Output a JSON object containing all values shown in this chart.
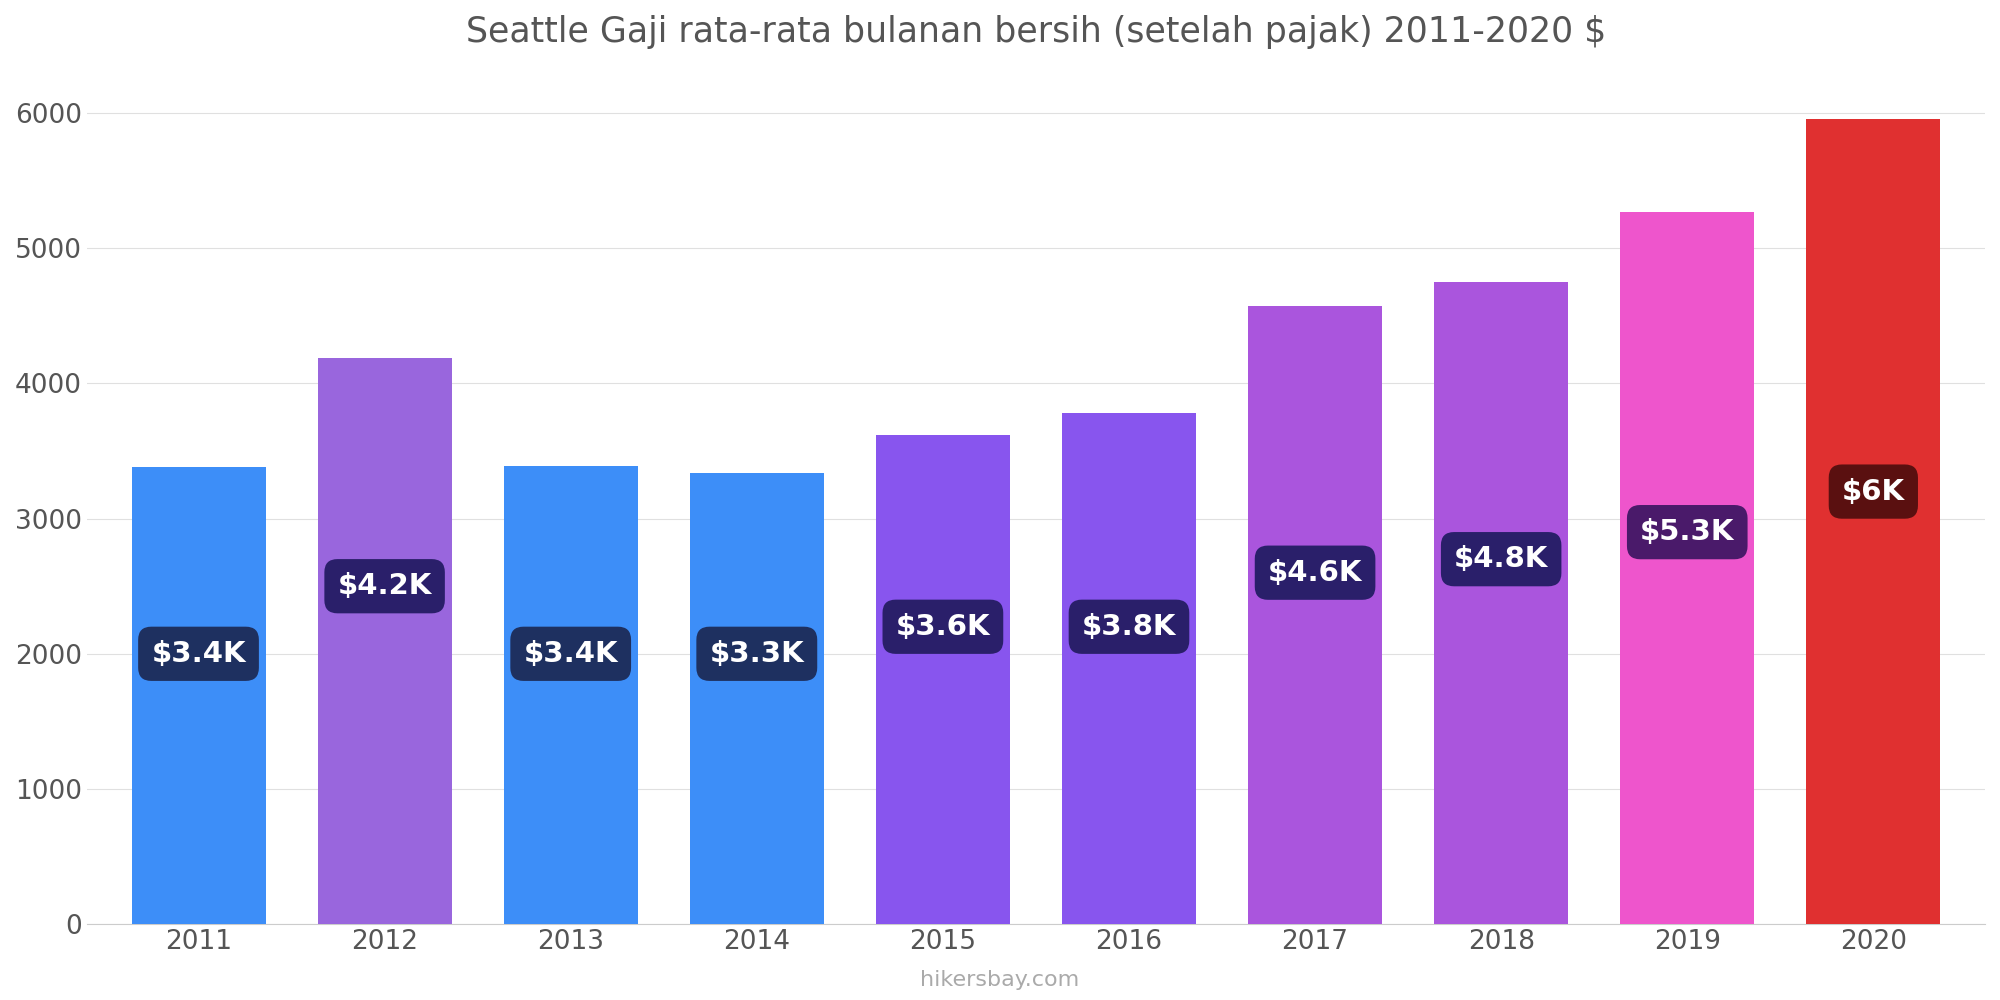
{
  "title": "Seattle Gaji rata-rata bulanan bersih (setelah pajak) 2011-2020 $",
  "years": [
    2011,
    2012,
    2013,
    2014,
    2015,
    2016,
    2017,
    2018,
    2019,
    2020
  ],
  "values": [
    3380,
    4190,
    3390,
    3340,
    3620,
    3780,
    4570,
    4750,
    5270,
    5960
  ],
  "bar_colors": [
    "#3d8ef8",
    "#9966dd",
    "#3d8ef8",
    "#3d8ef8",
    "#8855ee",
    "#8855ee",
    "#aa55dd",
    "#aa55dd",
    "#ee55cc",
    "#e03030"
  ],
  "labels": [
    "$3.4K",
    "$4.2K",
    "$3.4K",
    "$3.3K",
    "$3.6K",
    "$3.8K",
    "$4.6K",
    "$4.8K",
    "$5.3K",
    "$6K"
  ],
  "label_box_colors": [
    "#1e3060",
    "#2a1f6a",
    "#1e3060",
    "#1e3060",
    "#2a1f6a",
    "#2a1f6a",
    "#2a1f6a",
    "#2a1f6a",
    "#4a1a6a",
    "#5a1010"
  ],
  "label_y_pos": [
    2000,
    2500,
    2000,
    2000,
    2200,
    2200,
    2600,
    2700,
    2900,
    3200
  ],
  "ylim": [
    0,
    6300
  ],
  "yticks": [
    0,
    1000,
    2000,
    3000,
    4000,
    5000,
    6000
  ],
  "watermark": "hikersbay.com",
  "bg_color": "#ffffff"
}
